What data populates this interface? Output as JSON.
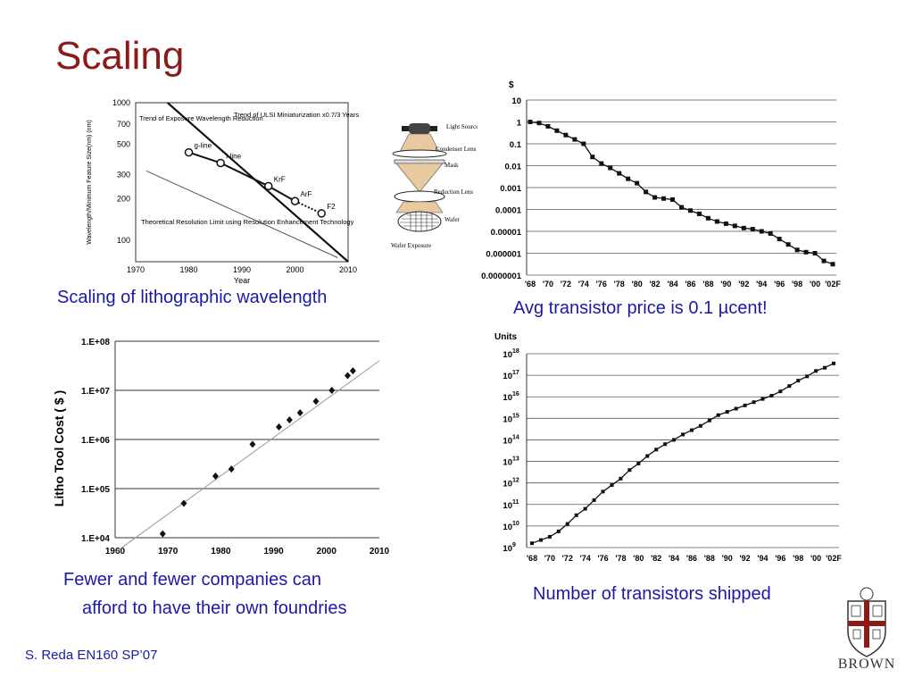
{
  "slide": {
    "title": "Scaling",
    "footer": "S. Reda EN160 SP’07",
    "logo_text": "BROWN"
  },
  "captions": {
    "litho_wavelength": "Scaling of lithographic wavelength",
    "transistor_price": "Avg transistor price is 0.1 µcent!",
    "tool_cost_line1": "Fewer and fewer companies can",
    "tool_cost_line2": "afford to have their own foundries",
    "units_shipped": "Number of transistors shipped"
  },
  "diagram": {
    "labels": [
      "Light Source",
      "Condenser Lens",
      "Mask",
      "Reduction Lens",
      "Wafer",
      "Wafer Exposure"
    ]
  },
  "chart_data": [
    {
      "id": "wavelength",
      "type": "line",
      "xlabel": "Year",
      "ylabel": "Wavelength/Minimum Feature Size(nm) (nm)",
      "x_ticks": [
        1970,
        1980,
        1990,
        2000,
        2010
      ],
      "y_ticks": [
        1000,
        700,
        500,
        300,
        200,
        100
      ],
      "xlim": [
        1970,
        2010
      ],
      "ylim": [
        70,
        1000
      ],
      "yscale": "log",
      "series": [
        {
          "name": "Trend of Exposure Wavelength Reduction",
          "points": [
            {
              "label": "g-line",
              "x": 1980,
              "y": 436
            },
            {
              "label": "i-line",
              "x": 1986,
              "y": 365
            },
            {
              "label": "KrF",
              "x": 1995,
              "y": 248
            },
            {
              "label": "ArF",
              "x": 2000,
              "y": 193
            },
            {
              "label": "F2",
              "x": 2005,
              "y": 157
            }
          ]
        }
      ],
      "lines": [
        {
          "name": "Trend of ULSI Miniaturization x0.7/3 Years",
          "from": [
            1976,
            1000
          ],
          "to": [
            2010,
            70
          ]
        },
        {
          "name": "Theoretical Resolution Limit using Resolution Enhancement Technology",
          "from": [
            1972,
            320
          ],
          "to": [
            2008,
            75
          ]
        }
      ],
      "annotations": [
        "Trend of Exposure Wavelength Reduction",
        "Trend of ULSI Miniaturization x0.7/3 Years",
        "Theoretical Resolution Limit using Resolution Enhancement Technology"
      ]
    },
    {
      "id": "price",
      "type": "line",
      "ylabel": "$",
      "yscale": "log",
      "y_ticks": [
        "10",
        "1",
        "0.1",
        "0.01",
        "0.001",
        "0.0001",
        "0.00001",
        "0.000001",
        "0.0000001"
      ],
      "x_ticks": [
        "'68",
        "'70",
        "'72",
        "'74",
        "'76",
        "'78",
        "'80",
        "'82",
        "'84",
        "'86",
        "'88",
        "'90",
        "'92",
        "'94",
        "'96",
        "'98",
        "'00",
        "'02F"
      ],
      "ylim_exp": [
        -7,
        1
      ],
      "x": [
        1968,
        1969,
        1970,
        1971,
        1972,
        1973,
        1974,
        1975,
        1976,
        1977,
        1978,
        1979,
        1980,
        1981,
        1982,
        1983,
        1984,
        1985,
        1986,
        1987,
        1988,
        1989,
        1990,
        1991,
        1992,
        1993,
        1994,
        1995,
        1996,
        1997,
        1998,
        1999,
        2000,
        2001,
        2002
      ],
      "log10_values": [
        0,
        -0.05,
        -0.2,
        -0.4,
        -0.6,
        -0.8,
        -1,
        -1.6,
        -1.9,
        -2.1,
        -2.35,
        -2.6,
        -2.8,
        -3.2,
        -3.45,
        -3.5,
        -3.55,
        -3.9,
        -4.05,
        -4.2,
        -4.4,
        -4.55,
        -4.65,
        -4.75,
        -4.85,
        -4.9,
        -5,
        -5.1,
        -5.35,
        -5.6,
        -5.85,
        -5.95,
        -6,
        -6.35,
        -6.5
      ]
    },
    {
      "id": "toolcost",
      "type": "scatter",
      "ylabel": "Litho  Tool Cost ( $ )",
      "y_ticks": [
        "1.E+08",
        "1.E+07",
        "1.E+06",
        "1.E+05",
        "1.E+04"
      ],
      "x_ticks": [
        1960,
        1970,
        1980,
        1990,
        2000,
        2010
      ],
      "xlim": [
        1960,
        2010
      ],
      "ylim_exp": [
        4,
        8
      ],
      "points": [
        [
          1969,
          12000
        ],
        [
          1973,
          50000
        ],
        [
          1979,
          180000
        ],
        [
          1982,
          250000
        ],
        [
          1986,
          800000
        ],
        [
          1991,
          1800000
        ],
        [
          1993,
          2500000
        ],
        [
          1995,
          3500000
        ],
        [
          1998,
          6000000
        ],
        [
          2001,
          10000000
        ],
        [
          2004,
          20000000
        ],
        [
          2005,
          25000000
        ]
      ],
      "trend": [
        [
          1960,
          5000
        ],
        [
          2010,
          40000000
        ]
      ]
    },
    {
      "id": "units",
      "type": "line",
      "ylabel": "Units",
      "yscale": "log",
      "y_ticks": [
        "10",
        "10",
        "10",
        "10",
        "10",
        "10",
        "10",
        "10",
        "10",
        "10"
      ],
      "y_tick_exponents": [
        "18",
        "17",
        "16",
        "15",
        "14",
        "13",
        "12",
        "11",
        "10",
        "9"
      ],
      "x_ticks": [
        "'68",
        "'70",
        "'72",
        "'74",
        "'76",
        "'78",
        "'80",
        "'82",
        "'84",
        "'86",
        "'88",
        "'90",
        "'92",
        "'94",
        "'96",
        "'98",
        "'00",
        "'02F"
      ],
      "ylim_exp": [
        9,
        18
      ],
      "x": [
        1968,
        1969,
        1970,
        1971,
        1972,
        1973,
        1974,
        1975,
        1976,
        1977,
        1978,
        1979,
        1980,
        1981,
        1982,
        1983,
        1984,
        1985,
        1986,
        1987,
        1988,
        1989,
        1990,
        1991,
        1992,
        1993,
        1994,
        1995,
        1996,
        1997,
        1998,
        1999,
        2000,
        2001,
        2002
      ],
      "log10_values": [
        9.2,
        9.35,
        9.5,
        9.75,
        10.1,
        10.5,
        10.8,
        11.2,
        11.6,
        11.9,
        12.2,
        12.6,
        12.9,
        13.25,
        13.55,
        13.8,
        14,
        14.25,
        14.45,
        14.65,
        14.9,
        15.15,
        15.3,
        15.45,
        15.6,
        15.75,
        15.9,
        16.05,
        16.25,
        16.5,
        16.75,
        16.95,
        17.2,
        17.35,
        17.55
      ]
    }
  ]
}
